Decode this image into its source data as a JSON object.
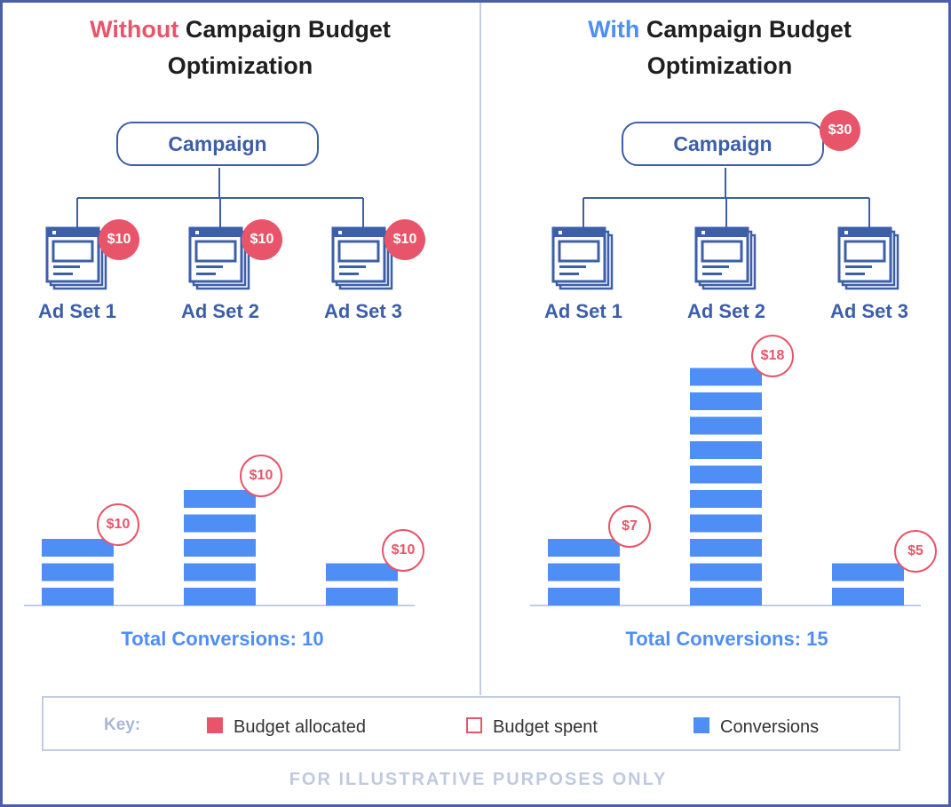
{
  "colors": {
    "budget_red": "#e8556a",
    "conversion_blue": "#4f8ef5",
    "structure_navy": "#3d5fa9",
    "divider": "#c2cde2"
  },
  "left": {
    "title_highlight": "Without",
    "title_rest": "Campaign Budget",
    "title_line2": "Optimization",
    "campaign_label": "Campaign",
    "adsets": [
      {
        "label": "Ad Set 1",
        "budget": "$10",
        "spent": "$10",
        "conversions": 3
      },
      {
        "label": "Ad Set 2",
        "budget": "$10",
        "spent": "$10",
        "conversions": 5
      },
      {
        "label": "Ad Set 3",
        "budget": "$10",
        "spent": "$10",
        "conversions": 2
      }
    ],
    "total_label": "Total Conversions: 10"
  },
  "right": {
    "title_highlight": "With",
    "title_rest": "Campaign Budget",
    "title_line2": "Optimization",
    "campaign_label": "Campaign",
    "campaign_budget": "$30",
    "adsets": [
      {
        "label": "Ad Set 1",
        "spent": "$7",
        "conversions": 3
      },
      {
        "label": "Ad Set 2",
        "spent": "$18",
        "conversions": 10
      },
      {
        "label": "Ad Set 3",
        "spent": "$5",
        "conversions": 2
      }
    ],
    "total_label": "Total Conversions: 15"
  },
  "legend": {
    "key_label": "Key:",
    "budget_allocated": "Budget allocated",
    "budget_spent": "Budget spent",
    "conversions": "Conversions",
    "icons": [
      "budget-allocated-swatch-icon",
      "budget-spent-swatch-icon",
      "conversions-swatch-icon"
    ]
  },
  "footer": "FOR ILLUSTRATIVE PURPOSES ONLY"
}
